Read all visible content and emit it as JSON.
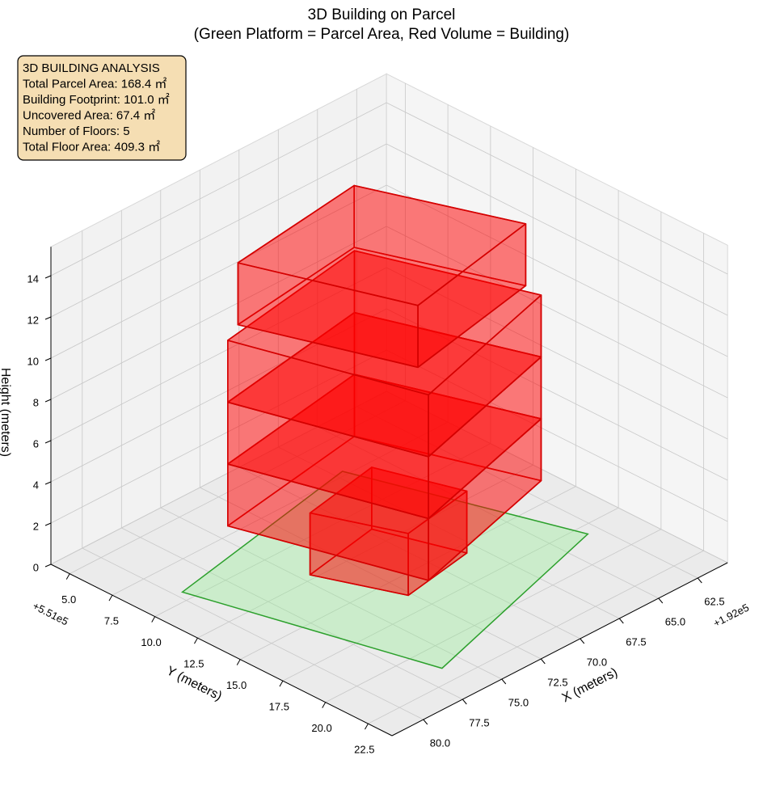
{
  "chart_data": {
    "type": "bar3d",
    "title": "3D Building on Parcel",
    "subtitle": "(Green Platform = Parcel Area, Red Volume = Building)",
    "info_box": [
      "3D BUILDING ANALYSIS",
      "Total Parcel Area: 168.4 ㎡",
      "Building Footprint: 101.0 ㎡",
      "Uncovered Area: 67.4 ㎡",
      "Number of Floors: 5",
      "Total Floor Area: 409.3 ㎡"
    ],
    "xlabel": "X (meters)",
    "ylabel": "Y (meters)",
    "zlabel": "Height (meters)",
    "x_offset": "+1.92e5",
    "y_offset": "+5.51e5",
    "xlim": [
      60.6,
      82.0
    ],
    "ylim": [
      3.9,
      23.9
    ],
    "zlim": [
      0,
      15.4
    ],
    "xticks": [
      62.5,
      {
        "value": 65,
        "label": "65.0"
      },
      67.5,
      {
        "value": 70,
        "label": "70.0"
      },
      72.5,
      {
        "value": 75,
        "label": "75.0"
      },
      77.5,
      {
        "value": 80,
        "label": "80.0"
      }
    ],
    "yticks": [
      {
        "value": 5,
        "label": "5.0"
      },
      7.5,
      {
        "value": 10,
        "label": "10.0"
      },
      12.5,
      {
        "value": 15,
        "label": "15.0"
      },
      17.5,
      {
        "value": 20,
        "label": "20.0"
      },
      22.5
    ],
    "zticks": [
      0,
      2,
      4,
      6,
      8,
      10,
      12,
      14
    ],
    "grid": true,
    "parcel": {
      "x": [
        79.6,
        67.0,
        63.2,
        76.2
      ],
      "y": [
        9.4,
        7.2,
        18.1,
        21.5
      ],
      "color": "#90ee90",
      "edge_color": "#2ca02c"
    },
    "building_color": "#ff0000",
    "building_edge": "#d40000",
    "floors": [
      {
        "z": [
          0,
          3
        ],
        "x": [
          74.5,
          69.7,
          68.2,
          72.7
        ],
        "y": [
          12.2,
          11.4,
          15.6,
          16.3
        ]
      },
      {
        "z": [
          3,
          6
        ],
        "x": [
          77.9,
          75.0,
          65.2,
          68.3
        ],
        "y": [
          10.5,
          19.6,
          17.2,
          9.1
        ]
      },
      {
        "z": [
          6,
          9
        ],
        "x": [
          77.9,
          75.0,
          65.2,
          68.3
        ],
        "y": [
          10.5,
          19.6,
          17.2,
          9.1
        ]
      },
      {
        "z": [
          9,
          12
        ],
        "x": [
          77.9,
          75.0,
          65.2,
          68.3
        ],
        "y": [
          10.5,
          19.6,
          17.2,
          9.1
        ]
      },
      {
        "z": [
          12,
          15
        ],
        "x": [
          76.6,
          68.1,
          65.1,
          73.6
        ],
        "y": [
          9.9,
          8.9,
          16.2,
          17.7
        ]
      }
    ]
  }
}
